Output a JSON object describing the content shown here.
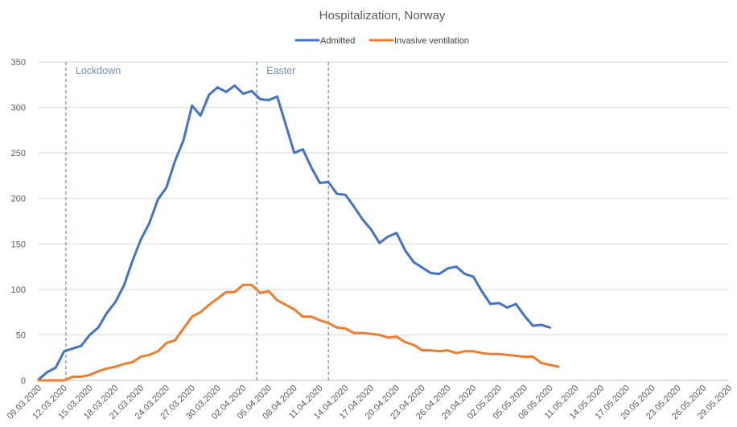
{
  "chart_data": {
    "type": "line",
    "title": "Hospitalization, Norway",
    "xlabel": "",
    "ylabel": "",
    "ylim": [
      0,
      350
    ],
    "yticks": [
      0,
      50,
      100,
      150,
      200,
      250,
      300,
      350
    ],
    "grid": true,
    "legend_position": "top-center",
    "x_tick_labels": [
      "09.03.2020",
      "12.03.2020",
      "15.03.2020",
      "18.03.2020",
      "21.03.2020",
      "24.03.2020",
      "27.03.2020",
      "30.03.2020",
      "02.04.2020",
      "05.04.2020",
      "08.04.2020",
      "11.04.2020",
      "14.04.2020",
      "17.04.2020",
      "20.04.2020",
      "23.04.2020",
      "26.04.2020",
      "29.04.2020",
      "02.05.2020",
      "05.05.2020",
      "08.05.2020",
      "11.05.2020",
      "14.05.2020",
      "17.05.2020",
      "20.05.2020",
      "23.05.2020",
      "26.05.2020",
      "29.05.2020"
    ],
    "x_start": "09.03.2020",
    "x_end": "29.05.2020",
    "series": [
      {
        "name": "Admitted",
        "color": "#4472c4",
        "start_day": 0,
        "values": [
          1,
          9,
          14,
          32,
          35,
          38,
          50,
          58,
          74,
          86,
          104,
          131,
          155,
          173,
          199,
          212,
          241,
          264,
          302,
          291,
          314,
          322,
          317,
          324,
          315,
          318,
          309,
          308,
          312,
          281,
          250,
          254,
          234,
          217,
          218,
          205,
          204,
          191,
          177,
          166,
          151,
          158,
          162,
          143,
          130,
          124,
          118,
          117,
          123,
          125,
          117,
          114,
          98,
          84,
          85,
          80,
          84,
          71,
          60,
          61,
          58
        ]
      },
      {
        "name": "Invasive ventilation",
        "color": "#ed7d31",
        "start_day": 0,
        "values": [
          0,
          0,
          0,
          0,
          4,
          4,
          6,
          10,
          13,
          15,
          18,
          20,
          26,
          28,
          32,
          41,
          44,
          57,
          70,
          75,
          83,
          90,
          97,
          97,
          105,
          105,
          96,
          98,
          88,
          83,
          78,
          70,
          70,
          66,
          63,
          58,
          57,
          52,
          52,
          51,
          50,
          47,
          48,
          42,
          39,
          33,
          33,
          32,
          33,
          30,
          32,
          32,
          30,
          29,
          29,
          28,
          27,
          26,
          26,
          19,
          17,
          15
        ]
      }
    ],
    "annotations": [
      {
        "label": "Lockdown",
        "day": 3.2
      },
      {
        "label": "Easter",
        "day": 25.6
      },
      {
        "label": "",
        "day": 34
      }
    ]
  }
}
